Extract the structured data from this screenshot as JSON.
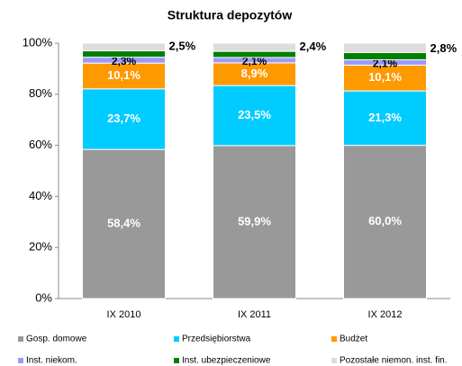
{
  "chart_data": {
    "type": "stacked_bar",
    "title": "Struktura depozytów",
    "categories": [
      "IX 2010",
      "IX 2011",
      "IX 2012"
    ],
    "series": [
      {
        "name": "Gosp. domowe",
        "color": "#999999",
        "values": [
          58.4,
          59.9,
          60.0
        ],
        "value_labels": [
          "58,4%",
          "59,9%",
          "60,0%"
        ]
      },
      {
        "name": "Przedsiębiorstwa",
        "color": "#00ccff",
        "values": [
          23.7,
          23.5,
          21.3
        ],
        "value_labels": [
          "23,7%",
          "23,5%",
          "21,3%"
        ]
      },
      {
        "name": "Budżet",
        "color": "#ff9900",
        "values": [
          10.1,
          8.9,
          10.1
        ],
        "value_labels": [
          "10,1%",
          "8,9%",
          "10,1%"
        ]
      },
      {
        "name": "Inst. niekom.",
        "color": "#9999ff",
        "values": [
          2.3,
          2.1,
          2.1
        ],
        "value_labels": [
          "2,3%",
          "2,1%",
          "2,1%"
        ]
      },
      {
        "name": "Inst. ubezpieczeniowe",
        "color": "#008000",
        "values": [
          2.5,
          2.4,
          2.8
        ],
        "value_labels": [
          "2,5%",
          "2,4%",
          "2,8%"
        ]
      },
      {
        "name": "Pozostałe niemon. inst. fin.",
        "color": "#dddddd",
        "values": [
          3.0,
          3.2,
          3.7
        ]
      }
    ],
    "ylim": [
      0,
      100
    ],
    "yticks": [
      {
        "value": 0,
        "label": "0%"
      },
      {
        "value": 20,
        "label": "20%"
      },
      {
        "value": 40,
        "label": "40%"
      },
      {
        "value": 60,
        "label": "60%"
      },
      {
        "value": 80,
        "label": "80%"
      },
      {
        "value": 100,
        "label": "100%"
      }
    ],
    "legend": "bottom"
  }
}
